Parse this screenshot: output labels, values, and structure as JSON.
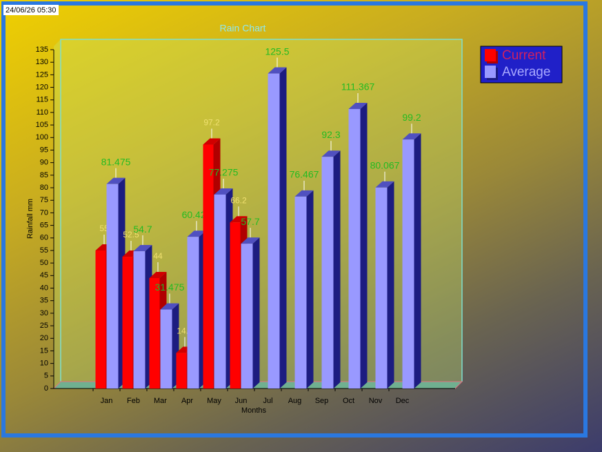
{
  "chart_data": {
    "type": "bar3d",
    "title": "Rain Chart",
    "timestamp": "24/06/26 05:30",
    "y_label": "Rainfall mm",
    "x_label": "Months",
    "categories": [
      "Jan",
      "Feb",
      "Mar",
      "Apr",
      "May",
      "Jun",
      "Jul",
      "Aug",
      "Sep",
      "Oct",
      "Nov",
      "Dec"
    ],
    "series": [
      {
        "name": "Current",
        "color": "#ff0000",
        "label_color": "#f0e070",
        "legend_text_color": "#d02060",
        "values": [
          55,
          52.5,
          44,
          14.2,
          97.2,
          66.2,
          null,
          null,
          null,
          null,
          null,
          null
        ]
      },
      {
        "name": "Average",
        "color": "#9999ff",
        "label_color": "#22bb22",
        "legend_text_color": "#a8a8ff",
        "values": [
          81.475,
          54.7,
          31.475,
          60.425,
          77.275,
          57.7,
          125.5,
          76.467,
          92.3,
          111.367,
          80.067,
          99.2
        ]
      }
    ],
    "ylim": [
      0,
      135
    ],
    "yticks": [
      0,
      5,
      10,
      15,
      20,
      25,
      30,
      35,
      40,
      45,
      50,
      55,
      60,
      65,
      70,
      75,
      80,
      85,
      90,
      95,
      100,
      105,
      110,
      115,
      120,
      125,
      130,
      135
    ],
    "legend": "top-right"
  }
}
